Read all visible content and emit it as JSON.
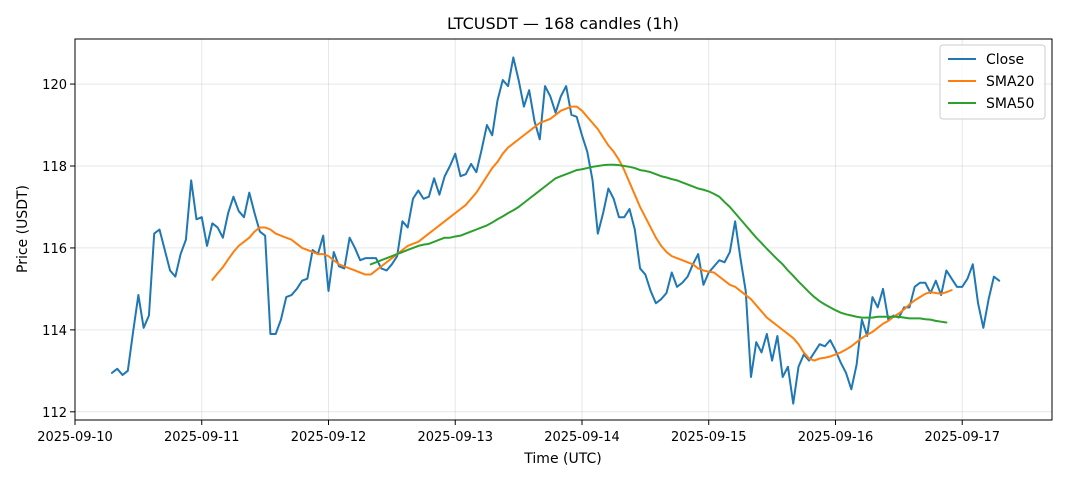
{
  "chart_data": {
    "type": "line",
    "title": "LTCUSDT — 168 candles (1h)",
    "xlabel": "Time (UTC)",
    "ylabel": "Price (USDT)",
    "x_start": "2025-09-10 07:00",
    "x_interval": "1h",
    "xlim": [
      "2025-09-10 00:00",
      "2025-09-17 17:00"
    ],
    "ylim": [
      111.8,
      121.1
    ],
    "x_ticks": [
      "2025-09-10",
      "2025-09-11",
      "2025-09-12",
      "2025-09-13",
      "2025-09-14",
      "2025-09-15",
      "2025-09-16",
      "2025-09-17"
    ],
    "y_ticks": [
      112,
      114,
      116,
      118,
      120
    ],
    "grid": true,
    "legend": "top-right",
    "series": [
      {
        "name": "Close",
        "color": "#1f77b4",
        "values": [
          112.95,
          113.05,
          112.9,
          113.0,
          113.95,
          114.85,
          114.05,
          114.35,
          116.35,
          116.45,
          115.95,
          115.45,
          115.3,
          115.85,
          116.2,
          117.65,
          116.7,
          116.75,
          116.05,
          116.6,
          116.5,
          116.25,
          116.85,
          117.25,
          116.9,
          116.75,
          117.35,
          116.85,
          116.4,
          116.3,
          113.9,
          113.9,
          114.25,
          114.8,
          114.85,
          115.0,
          115.2,
          115.25,
          115.95,
          115.85,
          116.3,
          114.95,
          115.9,
          115.55,
          115.5,
          116.25,
          116.0,
          115.7,
          115.75,
          115.75,
          115.75,
          115.5,
          115.45,
          115.6,
          115.8,
          116.65,
          116.5,
          117.2,
          117.4,
          117.2,
          117.25,
          117.7,
          117.3,
          117.75,
          118.0,
          118.3,
          117.75,
          117.8,
          118.05,
          117.85,
          118.4,
          119.0,
          118.75,
          119.6,
          120.1,
          119.95,
          120.65,
          120.1,
          119.45,
          119.85,
          119.1,
          118.65,
          119.95,
          119.7,
          119.3,
          119.7,
          119.95,
          119.25,
          119.2,
          118.75,
          118.35,
          117.65,
          116.35,
          116.85,
          117.45,
          117.2,
          116.75,
          116.75,
          116.95,
          116.45,
          115.5,
          115.35,
          114.95,
          114.65,
          114.75,
          114.9,
          115.4,
          115.05,
          115.15,
          115.3,
          115.6,
          115.85,
          115.1,
          115.4,
          115.55,
          115.7,
          115.65,
          115.9,
          116.65,
          115.75,
          114.95,
          112.85,
          113.7,
          113.45,
          113.9,
          113.25,
          113.85,
          112.85,
          113.1,
          112.2,
          113.1,
          113.4,
          113.25,
          113.45,
          113.65,
          113.6,
          113.75,
          113.5,
          113.2,
          112.95,
          112.55,
          113.15,
          114.25,
          113.85,
          114.8,
          114.55,
          115.0,
          114.25,
          114.35,
          114.3,
          114.55,
          114.55,
          115.05,
          115.15,
          115.15,
          114.9,
          115.2,
          114.85,
          115.45,
          115.25,
          115.05,
          115.05,
          115.25,
          115.6,
          114.65,
          114.05,
          114.75,
          115.3,
          115.2
        ]
      },
      {
        "name": "SMA20",
        "color": "#ff7f0e",
        "start_index": 19,
        "values": [
          115.22,
          115.38,
          115.53,
          115.72,
          115.9,
          116.05,
          116.15,
          116.25,
          116.4,
          116.5,
          116.5,
          116.45,
          116.35,
          116.3,
          116.25,
          116.2,
          116.1,
          116.0,
          115.95,
          115.9,
          115.85,
          115.85,
          115.8,
          115.7,
          115.6,
          115.55,
          115.5,
          115.45,
          115.4,
          115.35,
          115.35,
          115.45,
          115.55,
          115.65,
          115.75,
          115.85,
          115.95,
          116.05,
          116.1,
          116.15,
          116.25,
          116.35,
          116.45,
          116.55,
          116.65,
          116.75,
          116.85,
          116.95,
          117.05,
          117.2,
          117.35,
          117.55,
          117.75,
          117.95,
          118.1,
          118.3,
          118.45,
          118.55,
          118.65,
          118.75,
          118.85,
          118.95,
          119.05,
          119.1,
          119.15,
          119.25,
          119.35,
          119.4,
          119.45,
          119.45,
          119.35,
          119.2,
          119.05,
          118.9,
          118.7,
          118.5,
          118.35,
          118.15,
          117.9,
          117.6,
          117.3,
          117.0,
          116.75,
          116.5,
          116.25,
          116.05,
          115.9,
          115.8,
          115.75,
          115.7,
          115.65,
          115.6,
          115.5,
          115.45,
          115.42,
          115.4,
          115.3,
          115.2,
          115.1,
          115.05,
          114.95,
          114.85,
          114.75,
          114.6,
          114.45,
          114.3,
          114.2,
          114.1,
          114.0,
          113.9,
          113.8,
          113.65,
          113.45,
          113.3,
          113.25,
          113.3,
          113.32,
          113.35,
          113.4,
          113.45,
          113.52,
          113.6,
          113.7,
          113.8,
          113.88,
          113.95,
          114.05,
          114.15,
          114.22,
          114.32,
          114.4,
          114.5,
          114.62,
          114.72,
          114.8,
          114.88,
          114.92,
          114.9,
          114.88,
          114.92,
          114.97
        ]
      },
      {
        "name": "SMA50",
        "color": "#2ca02c",
        "start_index": 49,
        "values": [
          115.6,
          115.65,
          115.7,
          115.75,
          115.8,
          115.85,
          115.9,
          115.95,
          116.0,
          116.05,
          116.08,
          116.1,
          116.15,
          116.2,
          116.25,
          116.25,
          116.28,
          116.3,
          116.35,
          116.4,
          116.45,
          116.5,
          116.55,
          116.62,
          116.7,
          116.77,
          116.85,
          116.92,
          117.0,
          117.1,
          117.2,
          117.3,
          117.4,
          117.5,
          117.6,
          117.7,
          117.75,
          117.8,
          117.85,
          117.9,
          117.92,
          117.95,
          117.98,
          118.0,
          118.02,
          118.03,
          118.03,
          118.02,
          118.0,
          117.98,
          117.95,
          117.9,
          117.88,
          117.85,
          117.8,
          117.75,
          117.72,
          117.68,
          117.65,
          117.6,
          117.55,
          117.5,
          117.45,
          117.42,
          117.38,
          117.32,
          117.25,
          117.12,
          117.0,
          116.85,
          116.7,
          116.55,
          116.4,
          116.25,
          116.12,
          115.98,
          115.85,
          115.72,
          115.6,
          115.45,
          115.32,
          115.18,
          115.05,
          114.92,
          114.8,
          114.7,
          114.62,
          114.55,
          114.48,
          114.42,
          114.38,
          114.35,
          114.32,
          114.3,
          114.3,
          114.3,
          114.32,
          114.32,
          114.32,
          114.32,
          114.32,
          114.3,
          114.28,
          114.28,
          114.28,
          114.26,
          114.25,
          114.22,
          114.2,
          114.18
        ]
      }
    ]
  }
}
